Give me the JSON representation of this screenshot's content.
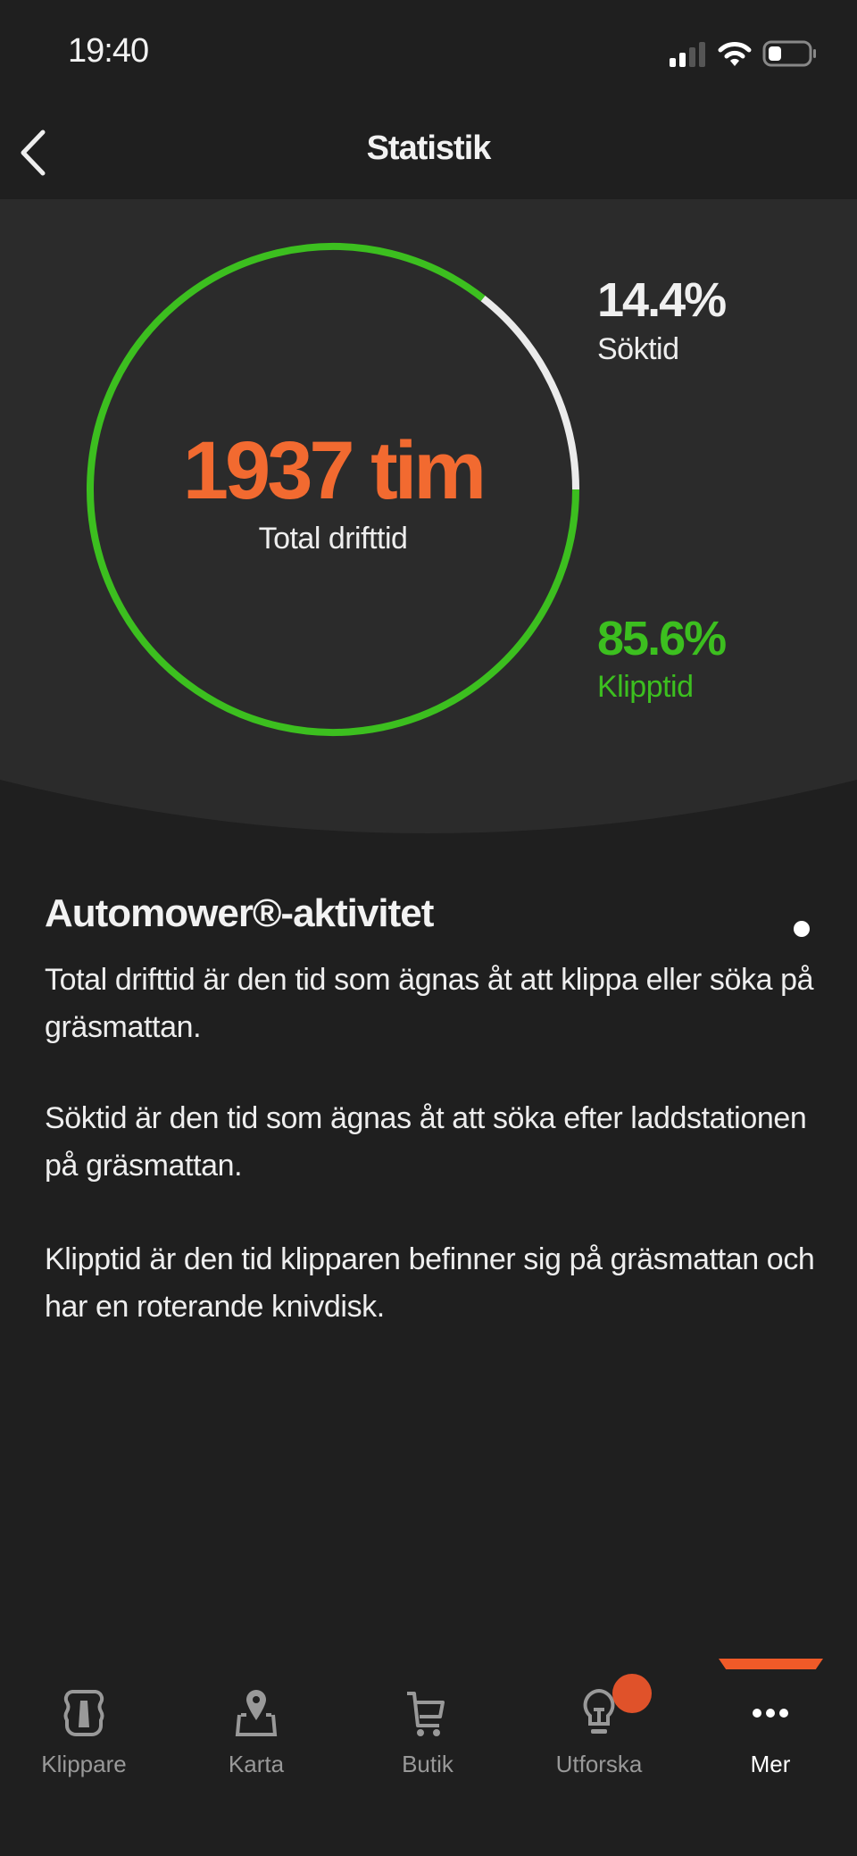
{
  "status_bar": {
    "time": "19:40",
    "signal_icon": "cellular-signal-icon",
    "wifi_icon": "wifi-icon",
    "battery_icon": "battery-icon"
  },
  "nav": {
    "title": "Statistik",
    "back_icon": "chevron-left-icon"
  },
  "stats": {
    "total_value": "1937 tim",
    "total_label": "Total drifttid",
    "search": {
      "percent_label": "14.4%",
      "label": "Söktid",
      "value": 14.4,
      "color": "#ebebeb"
    },
    "cutting": {
      "percent_label": "85.6%",
      "label": "Klipptid",
      "value": 85.6,
      "color": "#3cbf1f"
    },
    "accent": "#f26a30"
  },
  "info": {
    "title": "Automower®-aktivitet",
    "paragraphs": [
      "Total drifttid är den tid som ägnas åt att klippa eller söka på gräsmattan.",
      "Söktid är den tid som ägnas åt att söka efter laddstationen på gräsmattan.",
      "Klipptid är den tid klipparen befinner sig på gräsmattan och har en roterande knivdisk."
    ]
  },
  "tabbar": {
    "items": [
      {
        "label": "Klippare",
        "icon": "mower-icon"
      },
      {
        "label": "Karta",
        "icon": "map-pin-icon"
      },
      {
        "label": "Butik",
        "icon": "cart-icon"
      },
      {
        "label": "Utforska",
        "icon": "lightbulb-icon",
        "badge": true
      },
      {
        "label": "Mer",
        "icon": "more-dots-icon",
        "active": true
      }
    ],
    "accent": "#f05a28"
  }
}
